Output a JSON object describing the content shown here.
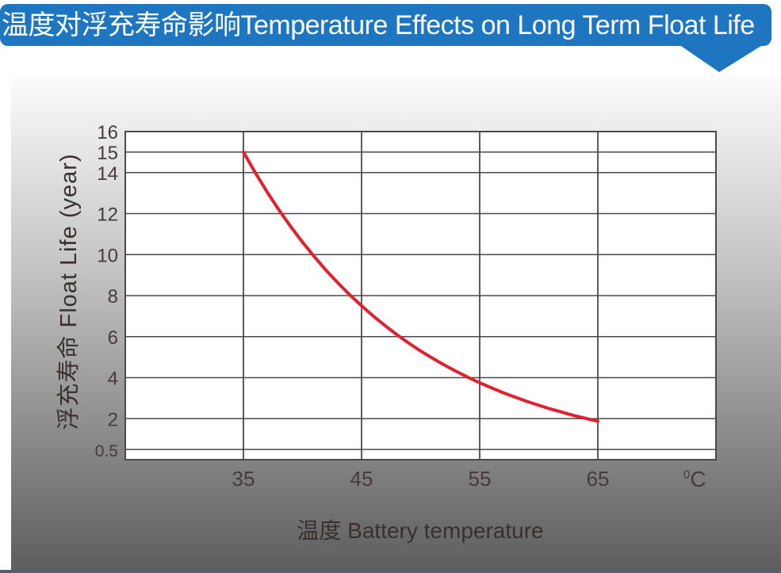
{
  "banner": {
    "title": "温度对浮充寿命影响Temperature Effects on Long Term Float Life"
  },
  "colors": {
    "banner_blue": "#1e76c0",
    "curve_red": "#e3202e",
    "grid": "#4a4a4a",
    "tick_text": "#453c3a",
    "panel_top": "#fbfbfb",
    "panel_bottom": "#5e5e5e",
    "bottom_bar": "#4d6077"
  },
  "chart_data": {
    "type": "line",
    "title": "温度对浮充寿命影响 Temperature Effects on Long Term Float Life",
    "xlabel": "温度  Battery temperature",
    "ylabel": "浮充寿命  Float Life (year)",
    "x_unit": {
      "sup": "0",
      "base": "C"
    },
    "xlim": [
      25,
      75
    ],
    "ylim": [
      0,
      16
    ],
    "x_ticks": [
      35,
      45,
      55,
      65
    ],
    "y_ticks": [
      0.5,
      2,
      4,
      6,
      8,
      10,
      12,
      14,
      15,
      16
    ],
    "grid": true,
    "legend": "none",
    "grid_color": "#4a4a4a",
    "tick_color": "#453c3a",
    "plot_bg": "#ffffff",
    "series": [
      {
        "name": "float-life-vs-temperature",
        "color": "#e3202e",
        "x": [
          35,
          36,
          37,
          38,
          39,
          40,
          41,
          42,
          43,
          44,
          45,
          46,
          47,
          48,
          49,
          50,
          51,
          52,
          53,
          54,
          55,
          56,
          57,
          58,
          59,
          60,
          61,
          62,
          63,
          64,
          65
        ],
        "y": [
          15.0,
          14.0,
          13.06,
          12.18,
          11.37,
          10.61,
          9.9,
          9.23,
          8.62,
          8.04,
          7.5,
          7.0,
          6.53,
          6.09,
          5.68,
          5.3,
          4.95,
          4.62,
          4.31,
          4.02,
          3.75,
          3.5,
          3.26,
          3.05,
          2.84,
          2.65,
          2.47,
          2.31,
          2.15,
          2.01,
          1.87
        ]
      }
    ]
  }
}
